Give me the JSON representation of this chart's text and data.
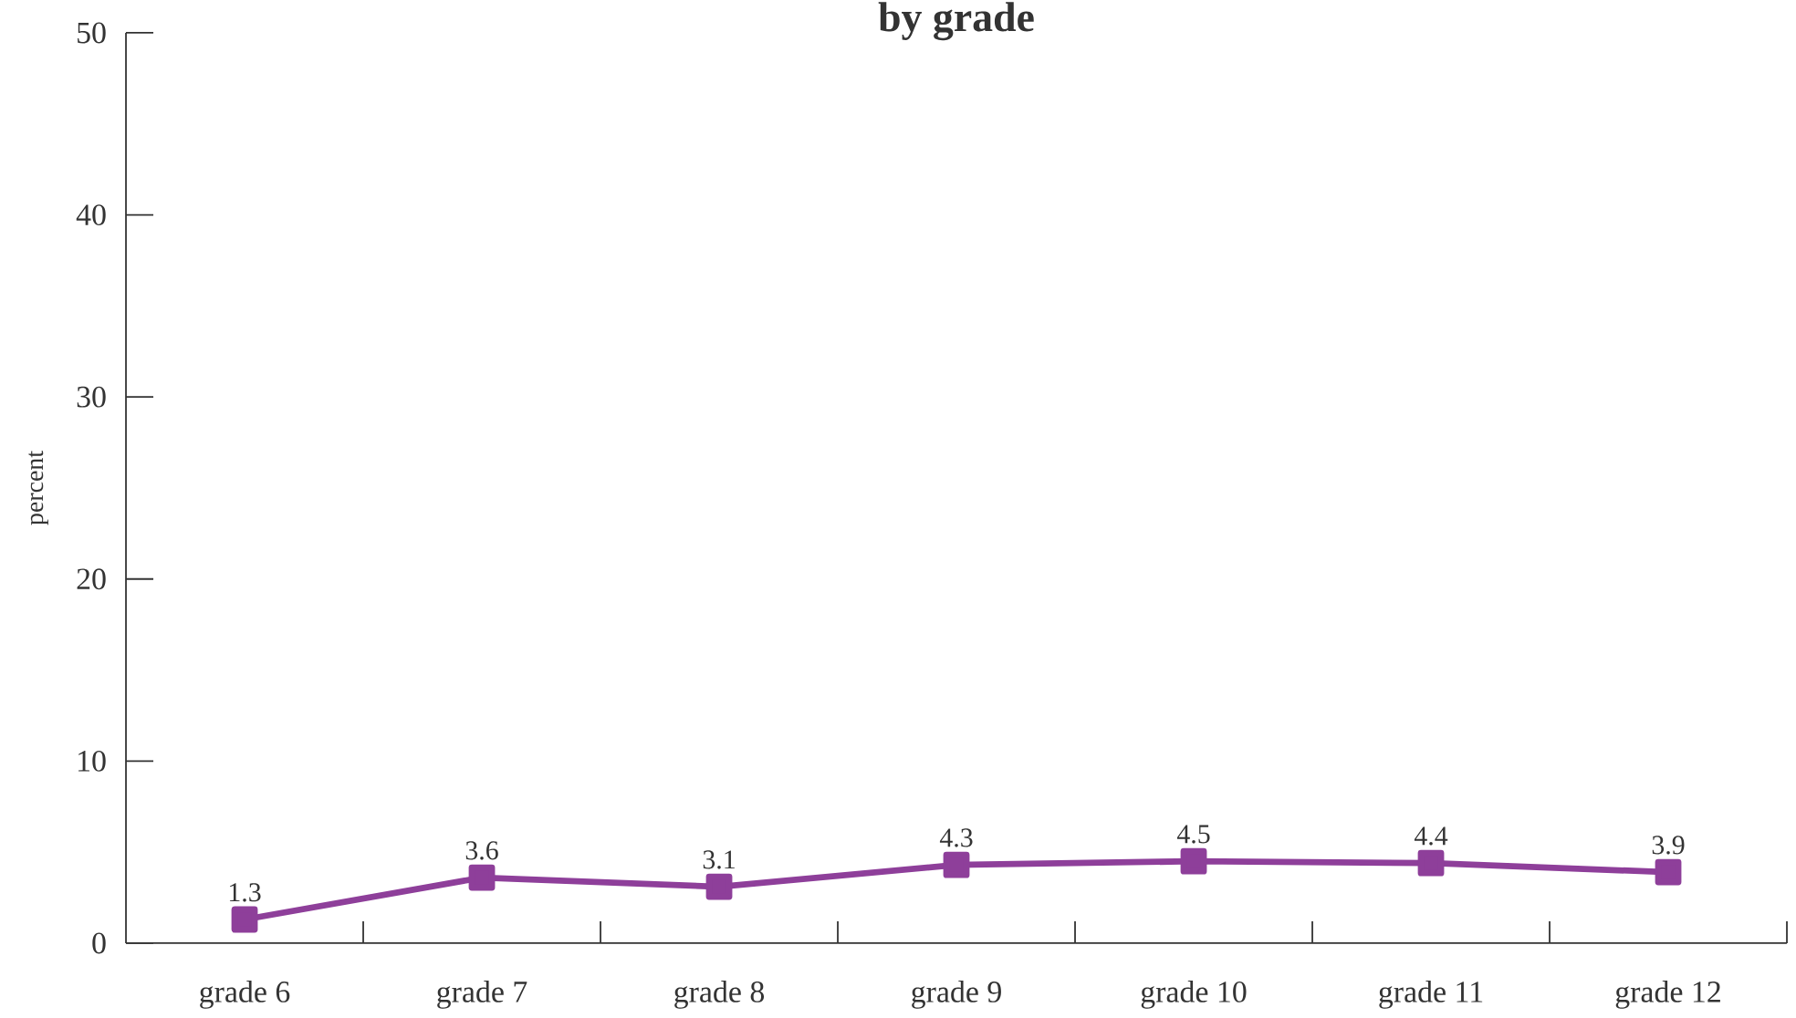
{
  "chart_data": {
    "type": "line",
    "title": "by grade",
    "ylabel": "percent",
    "categories": [
      "grade 6",
      "grade 7",
      "grade 8",
      "grade 9",
      "grade 10",
      "grade 11",
      "grade 12"
    ],
    "values": [
      1.3,
      3.6,
      3.1,
      4.3,
      4.5,
      4.4,
      3.9
    ],
    "color": "#8e3f9a",
    "ylim": [
      0,
      50
    ],
    "yticks": [
      0,
      10,
      20,
      30,
      40,
      50
    ],
    "data_labels": true,
    "marker": "square",
    "line_style": "solid"
  }
}
